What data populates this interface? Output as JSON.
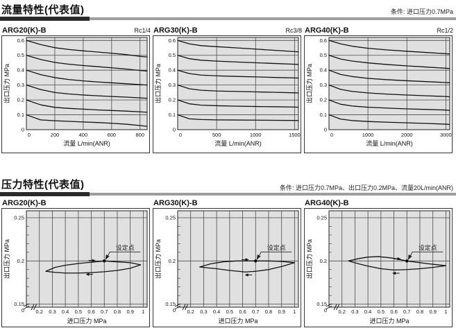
{
  "page": {
    "colors": {
      "plot_bg": "#e0e0e0",
      "grid": "#4a4a4a",
      "curve": "#101010",
      "frame": "#333333",
      "bar_dark": "#2a2a2a",
      "bar_gray": "#9e9e9e",
      "text": "#111111"
    }
  },
  "flow_section": {
    "title": "流量特性(代表值)",
    "note": "条件: 进口压力0.7MPa"
  },
  "pressure_section": {
    "title": "压力特性(代表值)",
    "note": "条件: 进口压力0.7MPa、出口压力0.2MPa、流量20L/min(ANR)"
  },
  "chart_data": [
    {
      "id": "flow-arg20",
      "kind": "flow",
      "type": "line",
      "panel_title": "ARG20(K)-B",
      "size_label": "Rc1/4",
      "xlabel": "流量  L/min(ANR)",
      "ylabel": "出口压力 MPa",
      "xlim": [
        0,
        850
      ],
      "ylim": [
        0,
        0.62
      ],
      "xticks": [
        0,
        200,
        400,
        600,
        800
      ],
      "yticks": [
        0,
        0.1,
        0.2,
        0.3,
        0.4,
        0.5,
        0.6
      ],
      "series": [
        {
          "name": "set-0.6",
          "x": [
            0,
            100,
            200,
            300,
            400,
            500,
            600,
            700,
            800,
            850
          ],
          "y": [
            0.6,
            0.572,
            0.551,
            0.539,
            0.53,
            0.522,
            0.514,
            0.505,
            0.493,
            0.489
          ]
        },
        {
          "name": "set-0.5",
          "x": [
            0,
            100,
            200,
            300,
            400,
            500,
            600,
            700,
            800,
            850
          ],
          "y": [
            0.5,
            0.472,
            0.452,
            0.44,
            0.431,
            0.424,
            0.416,
            0.408,
            0.398,
            0.394
          ]
        },
        {
          "name": "set-0.4",
          "x": [
            0,
            100,
            200,
            300,
            400,
            500,
            600,
            700,
            800,
            850
          ],
          "y": [
            0.4,
            0.37,
            0.35,
            0.337,
            0.328,
            0.321,
            0.315,
            0.309,
            0.303,
            0.3
          ]
        },
        {
          "name": "set-0.3",
          "x": [
            0,
            100,
            200,
            300,
            400,
            500,
            600,
            700,
            800,
            850
          ],
          "y": [
            0.3,
            0.27,
            0.25,
            0.24,
            0.233,
            0.228,
            0.223,
            0.219,
            0.214,
            0.211
          ]
        },
        {
          "name": "set-0.2",
          "x": [
            0,
            100,
            200,
            300,
            400,
            500,
            600,
            700,
            800,
            850
          ],
          "y": [
            0.2,
            0.167,
            0.15,
            0.143,
            0.138,
            0.133,
            0.129,
            0.125,
            0.12,
            0.117
          ]
        },
        {
          "name": "set-0.1",
          "x": [
            0,
            100,
            200,
            300,
            400,
            500,
            600,
            700,
            800,
            850
          ],
          "y": [
            0.1,
            0.066,
            0.06,
            0.056,
            0.052,
            0.048,
            0.043,
            0.037,
            0.028,
            0.022
          ]
        }
      ]
    },
    {
      "id": "flow-arg30",
      "kind": "flow",
      "type": "line",
      "panel_title": "ARG30(K)-B",
      "size_label": "Rc3/8",
      "xlabel": "流量  L/min(ANR)",
      "ylabel": "出口压力 MPa",
      "xlim": [
        0,
        1550
      ],
      "ylim": [
        0,
        0.62
      ],
      "xticks": [
        0,
        500,
        1000,
        1500
      ],
      "yticks": [
        0,
        0.1,
        0.2,
        0.3,
        0.4,
        0.5,
        0.6
      ],
      "series": [
        {
          "name": "set-0.6",
          "x": [
            0,
            150,
            300,
            500,
            750,
            1000,
            1250,
            1500,
            1550
          ],
          "y": [
            0.6,
            0.577,
            0.565,
            0.558,
            0.55,
            0.542,
            0.533,
            0.525,
            0.523
          ]
        },
        {
          "name": "set-0.5",
          "x": [
            0,
            150,
            300,
            500,
            750,
            1000,
            1250,
            1500,
            1550
          ],
          "y": [
            0.5,
            0.477,
            0.467,
            0.461,
            0.455,
            0.45,
            0.445,
            0.44,
            0.438
          ]
        },
        {
          "name": "set-0.4",
          "x": [
            0,
            150,
            300,
            500,
            750,
            1000,
            1250,
            1500,
            1550
          ],
          "y": [
            0.4,
            0.377,
            0.367,
            0.362,
            0.358,
            0.355,
            0.351,
            0.348,
            0.347
          ]
        },
        {
          "name": "set-0.3",
          "x": [
            0,
            150,
            300,
            500,
            750,
            1000,
            1250,
            1500,
            1550
          ],
          "y": [
            0.3,
            0.275,
            0.265,
            0.26,
            0.257,
            0.254,
            0.251,
            0.248,
            0.247
          ]
        },
        {
          "name": "set-0.2",
          "x": [
            0,
            150,
            300,
            500,
            750,
            1000,
            1250,
            1500,
            1550
          ],
          "y": [
            0.2,
            0.174,
            0.165,
            0.161,
            0.158,
            0.156,
            0.154,
            0.152,
            0.151
          ]
        },
        {
          "name": "set-0.1",
          "x": [
            0,
            150,
            300,
            500,
            750,
            1000,
            1250,
            1500,
            1550
          ],
          "y": [
            0.1,
            0.073,
            0.068,
            0.066,
            0.065,
            0.064,
            0.063,
            0.062,
            0.061
          ]
        }
      ]
    },
    {
      "id": "flow-arg40",
      "kind": "flow",
      "type": "line",
      "panel_title": "ARG40(K)-B",
      "size_label": "Rc1/2",
      "xlabel": "流量  L/min(ANR)",
      "ylabel": "出口压力 MPa",
      "xlim": [
        0,
        3100
      ],
      "ylim": [
        0,
        0.62
      ],
      "xticks": [
        0,
        1000,
        2000,
        3000
      ],
      "yticks": [
        0,
        0.1,
        0.2,
        0.3,
        0.4,
        0.5,
        0.6
      ],
      "series": [
        {
          "name": "set-0.6",
          "x": [
            0,
            300,
            600,
            1000,
            1500,
            2000,
            2500,
            3000,
            3100
          ],
          "y": [
            0.6,
            0.577,
            0.561,
            0.547,
            0.536,
            0.527,
            0.519,
            0.511,
            0.509
          ]
        },
        {
          "name": "set-0.5",
          "x": [
            0,
            300,
            600,
            1000,
            1500,
            2000,
            2500,
            3000,
            3100
          ],
          "y": [
            0.5,
            0.475,
            0.461,
            0.449,
            0.438,
            0.429,
            0.421,
            0.413,
            0.411
          ]
        },
        {
          "name": "set-0.4",
          "x": [
            0,
            300,
            600,
            1000,
            1500,
            2000,
            2500,
            3000,
            3100
          ],
          "y": [
            0.4,
            0.371,
            0.357,
            0.345,
            0.336,
            0.329,
            0.323,
            0.317,
            0.315
          ]
        },
        {
          "name": "set-0.3",
          "x": [
            0,
            300,
            600,
            1000,
            1500,
            2000,
            2500,
            3000,
            3100
          ],
          "y": [
            0.3,
            0.271,
            0.257,
            0.247,
            0.239,
            0.233,
            0.228,
            0.223,
            0.221
          ]
        },
        {
          "name": "set-0.2",
          "x": [
            0,
            300,
            600,
            1000,
            1500,
            2000,
            2500,
            3000,
            3100
          ],
          "y": [
            0.2,
            0.171,
            0.159,
            0.151,
            0.145,
            0.14,
            0.136,
            0.132,
            0.13
          ]
        },
        {
          "name": "set-0.1",
          "x": [
            0,
            300,
            600,
            1000,
            1500,
            2000,
            2500,
            3000,
            3100
          ],
          "y": [
            0.1,
            0.071,
            0.061,
            0.055,
            0.05,
            0.046,
            0.042,
            0.037,
            0.035
          ]
        }
      ]
    },
    {
      "id": "pressure-arg20",
      "kind": "pressure",
      "type": "line",
      "panel_title": "ARG20(K)-B",
      "size_label": "",
      "xlabel": "进口压力 MPa",
      "ylabel": "出口压力 MPa",
      "xlim": [
        0.1,
        1.03
      ],
      "ylim": [
        0.1465,
        0.258
      ],
      "xticks": [
        0.2,
        0.3,
        0.4,
        0.5,
        0.6,
        0.7,
        0.8,
        0.9,
        1.0
      ],
      "xtick_labels": [
        "0.2",
        "0.3",
        "0.4",
        "0.5",
        "0.6",
        "0.7",
        "0.8",
        "0.9",
        "1"
      ],
      "yticks": [
        0.15,
        0.2,
        0.25
      ],
      "ytick_minor": [
        0.16,
        0.17,
        0.18,
        0.19,
        0.21,
        0.22,
        0.23,
        0.24
      ],
      "origin_label": "0",
      "set_point": {
        "x": 0.7,
        "y": 0.2,
        "label": "设定点"
      },
      "arrows": {
        "right": [
          0.62,
          0.2005
        ],
        "left": [
          0.57,
          0.1845
        ]
      },
      "series": [
        {
          "name": "hysteresis-loop",
          "closed": true,
          "x": [
            0.25,
            0.32,
            0.4,
            0.5,
            0.6,
            0.7,
            0.8,
            0.9,
            0.98,
            0.9,
            0.8,
            0.7,
            0.6,
            0.5,
            0.4,
            0.32
          ],
          "y": [
            0.188,
            0.1925,
            0.195,
            0.197,
            0.1985,
            0.2,
            0.199,
            0.198,
            0.1955,
            0.1915,
            0.189,
            0.1875,
            0.1865,
            0.186,
            0.186,
            0.1868
          ]
        }
      ]
    },
    {
      "id": "pressure-arg30",
      "kind": "pressure",
      "type": "line",
      "panel_title": "ARG30(K)-B",
      "size_label": "",
      "xlabel": "进口压力 MPa",
      "ylabel": "出口压力 MPa",
      "xlim": [
        0.1,
        1.03
      ],
      "ylim": [
        0.1465,
        0.258
      ],
      "xticks": [
        0.2,
        0.3,
        0.4,
        0.5,
        0.6,
        0.7,
        0.8,
        0.9,
        1.0
      ],
      "xtick_labels": [
        "0.2",
        "0.3",
        "0.4",
        "0.5",
        "0.6",
        "0.7",
        "0.8",
        "0.9",
        "1"
      ],
      "yticks": [
        0.15,
        0.2,
        0.25
      ],
      "ytick_minor": [
        0.16,
        0.17,
        0.18,
        0.19,
        0.21,
        0.22,
        0.23,
        0.24
      ],
      "origin_label": "0",
      "set_point": {
        "x": 0.7,
        "y": 0.2,
        "label": "设定点"
      },
      "arrows": {
        "right": [
          0.635,
          0.2015
        ],
        "left": [
          0.63,
          0.1838
        ]
      },
      "series": [
        {
          "name": "hysteresis-loop",
          "closed": true,
          "x": [
            0.27,
            0.35,
            0.45,
            0.55,
            0.65,
            0.7,
            0.8,
            0.9,
            1.0,
            0.9,
            0.8,
            0.7,
            0.62,
            0.5,
            0.4,
            0.33
          ],
          "y": [
            0.193,
            0.1965,
            0.199,
            0.2,
            0.2,
            0.2,
            0.2,
            0.1995,
            0.198,
            0.1935,
            0.19,
            0.188,
            0.1872,
            0.189,
            0.191,
            0.192
          ]
        }
      ]
    },
    {
      "id": "pressure-arg40",
      "kind": "pressure",
      "type": "line",
      "panel_title": "ARG40(K)-B",
      "size_label": "",
      "xlabel": "进口压力 MPa",
      "ylabel": "出口压力 MPa",
      "xlim": [
        0.1,
        1.03
      ],
      "ylim": [
        0.1465,
        0.258
      ],
      "xticks": [
        0.2,
        0.3,
        0.4,
        0.5,
        0.6,
        0.7,
        0.8,
        0.9,
        1.0
      ],
      "xtick_labels": [
        "0.2",
        "0.3",
        "0.4",
        "0.5",
        "0.6",
        "0.7",
        "0.8",
        "0.9",
        "1"
      ],
      "yticks": [
        0.15,
        0.2,
        0.25
      ],
      "ytick_minor": [
        0.16,
        0.17,
        0.18,
        0.19,
        0.21,
        0.22,
        0.23,
        0.24
      ],
      "origin_label": "0",
      "set_point": {
        "x": 0.7,
        "y": 0.2,
        "label": "设定点"
      },
      "arrows": {
        "right": [
          0.64,
          0.2025
        ],
        "left": [
          0.6,
          0.1858
        ]
      },
      "series": [
        {
          "name": "hysteresis-loop",
          "closed": true,
          "x": [
            0.25,
            0.32,
            0.4,
            0.48,
            0.58,
            0.7,
            0.85,
            1.0,
            0.9,
            0.8,
            0.7,
            0.6,
            0.5,
            0.4,
            0.32
          ],
          "y": [
            0.2,
            0.2025,
            0.2045,
            0.205,
            0.2035,
            0.2,
            0.197,
            0.1945,
            0.1925,
            0.191,
            0.19,
            0.1895,
            0.191,
            0.194,
            0.197
          ]
        }
      ]
    }
  ]
}
